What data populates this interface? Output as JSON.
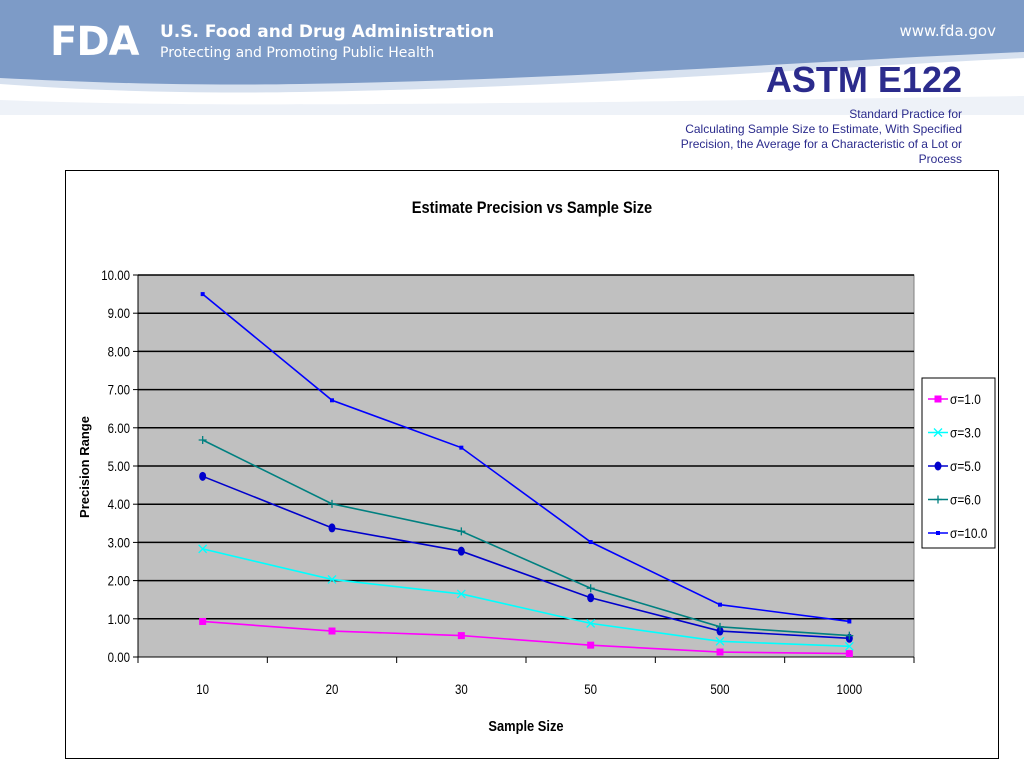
{
  "header": {
    "logo_text": "FDA",
    "agency_name": "U.S. Food and Drug Administration",
    "agency_tagline": "Protecting and Promoting Public Health",
    "site_url": "www.fda.gov"
  },
  "slide": {
    "title": "ASTM E122",
    "subtitle_lines": [
      "Standard Practice for",
      "Calculating Sample Size to Estimate, With Specified",
      "Precision, the Average for a Characteristic of a Lot or",
      "Process"
    ]
  },
  "colors": {
    "banner_dark": "#7d9bc7",
    "banner_light": "#d7e1ef",
    "title": "#2b2b8c",
    "plot_background": "#c0c0c0"
  },
  "chart_data": {
    "type": "line",
    "title": "Estimate Precision vs Sample Size",
    "xlabel": "Sample Size",
    "ylabel": "Precision Range",
    "categories": [
      "10",
      "20",
      "30",
      "50",
      "500",
      "1000"
    ],
    "ylim": [
      0,
      10
    ],
    "ytick_labels": [
      "0.00",
      "1.00",
      "2.00",
      "3.00",
      "4.00",
      "5.00",
      "6.00",
      "7.00",
      "8.00",
      "9.00",
      "10.00"
    ],
    "grid": true,
    "legend_position": "right",
    "series": [
      {
        "name": "σ=1.0",
        "color": "#ff00ff",
        "marker": "square",
        "values": [
          0.93,
          0.68,
          0.56,
          0.31,
          0.13,
          0.09
        ]
      },
      {
        "name": "σ=3.0",
        "color": "#00ffff",
        "marker": "x",
        "values": [
          2.83,
          2.03,
          1.65,
          0.88,
          0.41,
          0.28
        ]
      },
      {
        "name": "σ=5.0",
        "color": "#0000cc",
        "marker": "circle",
        "values": [
          4.73,
          3.38,
          2.77,
          1.55,
          0.68,
          0.49
        ]
      },
      {
        "name": "σ=6.0",
        "color": "#008080",
        "marker": "plus",
        "values": [
          5.68,
          4.01,
          3.29,
          1.8,
          0.79,
          0.56
        ]
      },
      {
        "name": "σ=10.0",
        "color": "#0000ff",
        "marker": "dot",
        "values": [
          9.5,
          6.72,
          5.48,
          3.01,
          1.37,
          0.93
        ]
      }
    ]
  }
}
